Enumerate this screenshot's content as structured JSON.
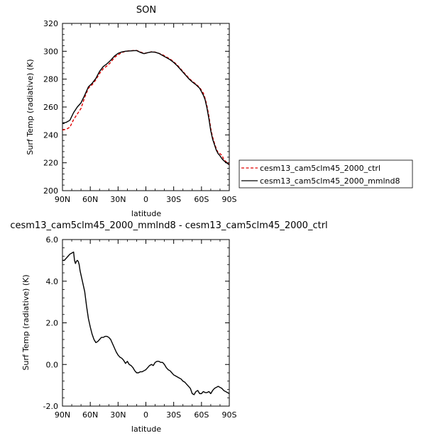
{
  "chart_data": [
    {
      "type": "line",
      "title": "SON",
      "xlabel": "latitude",
      "ylabel": "Surf Temp (radiative) (K)",
      "xlim": [
        90,
        -90
      ],
      "ylim": [
        200,
        320
      ],
      "x_tick_values": [
        90,
        60,
        30,
        0,
        -30,
        -60,
        -90
      ],
      "x_tick_labels": [
        "90N",
        "60N",
        "30N",
        "0",
        "30S",
        "60S",
        "90S"
      ],
      "y_tick_values": [
        200,
        220,
        240,
        260,
        280,
        300,
        320
      ],
      "y_tick_labels": [
        "200",
        "220",
        "240",
        "260",
        "280",
        "300",
        "320"
      ],
      "legend_position": "right",
      "series": [
        {
          "name": "cesm13_cam5clm45_2000_ctrl",
          "color": "#e00000",
          "dash": "dashed",
          "x": [
            90,
            86,
            82,
            78,
            74,
            70,
            66,
            62,
            58,
            54,
            50,
            46,
            42,
            38,
            34,
            30,
            26,
            22,
            18,
            14,
            10,
            6,
            2,
            -2,
            -6,
            -10,
            -14,
            -18,
            -22,
            -26,
            -30,
            -34,
            -38,
            -42,
            -46,
            -50,
            -54,
            -58,
            -62,
            -64,
            -66,
            -68,
            -70,
            -72,
            -74,
            -76,
            -78,
            -80,
            -82,
            -84,
            -86,
            -88,
            -90
          ],
          "y": [
            243.5,
            244.0,
            245.5,
            251.0,
            255.0,
            259.0,
            267.0,
            273.5,
            276.0,
            279.5,
            284.0,
            287.5,
            289.5,
            292.0,
            295.5,
            297.5,
            299.0,
            300.0,
            300.3,
            300.5,
            300.6,
            299.5,
            298.5,
            299.0,
            299.6,
            299.4,
            298.5,
            297.5,
            296.0,
            294.5,
            292.5,
            290.0,
            287.0,
            284.0,
            281.0,
            278.5,
            276.5,
            274.0,
            270.0,
            266.0,
            260.5,
            253.5,
            244.5,
            238.5,
            234.0,
            230.0,
            227.0,
            226.5,
            225.5,
            222.5,
            221.0,
            220.0,
            219.0
          ]
        },
        {
          "name": "cesm13_cam5clm45_2000_mmlnd8",
          "color": "#000000",
          "dash": "solid",
          "x": [
            90,
            86,
            82,
            78,
            74,
            70,
            66,
            62,
            58,
            54,
            50,
            46,
            42,
            38,
            34,
            30,
            26,
            22,
            18,
            14,
            10,
            6,
            2,
            -2,
            -6,
            -10,
            -14,
            -18,
            -22,
            -26,
            -30,
            -34,
            -38,
            -42,
            -46,
            -50,
            -54,
            -58,
            -62,
            -64,
            -66,
            -68,
            -70,
            -72,
            -74,
            -76,
            -78,
            -80,
            -82,
            -84,
            -86,
            -88,
            -90
          ],
          "y": [
            248.5,
            249.0,
            250.5,
            256.0,
            260.0,
            263.0,
            268.5,
            274.5,
            277.0,
            280.5,
            285.5,
            289.0,
            291.0,
            293.5,
            296.5,
            298.5,
            299.5,
            300.0,
            300.2,
            300.4,
            300.5,
            299.2,
            298.3,
            299.0,
            299.5,
            299.3,
            298.5,
            297.0,
            295.5,
            294.0,
            292.0,
            289.5,
            286.5,
            283.5,
            280.5,
            278.0,
            276.0,
            273.5,
            268.5,
            265.0,
            259.0,
            251.5,
            243.0,
            237.0,
            233.0,
            229.0,
            226.5,
            225.0,
            223.0,
            221.5,
            220.5,
            219.5,
            218.5
          ]
        }
      ]
    },
    {
      "type": "line",
      "title": "cesm13_cam5clm45_2000_mmlnd8 - cesm13_cam5clm45_2000_ctrl",
      "xlabel": "latitude",
      "ylabel": "Surf Temp (radiative) (K)",
      "xlim": [
        90,
        -90
      ],
      "ylim": [
        -2.0,
        6.0
      ],
      "x_tick_values": [
        90,
        60,
        30,
        0,
        -30,
        -60,
        -90
      ],
      "x_tick_labels": [
        "90N",
        "60N",
        "30N",
        "0",
        "30S",
        "60S",
        "90S"
      ],
      "y_tick_values": [
        -2,
        0,
        2,
        4,
        6
      ],
      "y_tick_labels": [
        "-2.0",
        "0.0",
        "2.0",
        "4.0",
        "6.0"
      ],
      "series": [
        {
          "color": "#000000",
          "dash": "solid",
          "x": [
            90,
            88,
            86,
            84,
            82,
            80,
            78,
            77,
            76,
            75,
            74,
            73,
            72,
            71,
            70,
            68,
            66,
            64,
            62,
            60,
            58,
            56,
            54,
            52,
            50,
            48,
            46,
            44,
            42,
            40,
            38,
            36,
            34,
            32,
            30,
            28,
            26,
            24,
            22,
            20,
            18,
            16,
            14,
            12,
            10,
            8,
            6,
            4,
            2,
            0,
            -2,
            -4,
            -6,
            -8,
            -10,
            -12,
            -14,
            -16,
            -18,
            -20,
            -22,
            -24,
            -26,
            -28,
            -30,
            -32,
            -34,
            -36,
            -38,
            -40,
            -42,
            -44,
            -46,
            -48,
            -50,
            -52,
            -54,
            -56,
            -58,
            -60,
            -62,
            -64,
            -66,
            -68,
            -70,
            -72,
            -74,
            -76,
            -78,
            -80,
            -82,
            -84,
            -86,
            -88,
            -90
          ],
          "y": [
            5.0,
            5.0,
            5.1,
            5.2,
            5.3,
            5.35,
            5.4,
            5.0,
            4.85,
            4.95,
            5.0,
            4.95,
            4.8,
            4.5,
            4.3,
            3.9,
            3.5,
            2.8,
            2.2,
            1.8,
            1.45,
            1.2,
            1.05,
            1.1,
            1.2,
            1.3,
            1.3,
            1.35,
            1.35,
            1.3,
            1.2,
            1.0,
            0.8,
            0.6,
            0.45,
            0.35,
            0.3,
            0.2,
            0.05,
            0.15,
            0.0,
            -0.05,
            -0.15,
            -0.3,
            -0.4,
            -0.4,
            -0.35,
            -0.35,
            -0.3,
            -0.25,
            -0.15,
            -0.05,
            0.0,
            -0.05,
            0.1,
            0.15,
            0.15,
            0.1,
            0.1,
            0.0,
            -0.15,
            -0.25,
            -0.3,
            -0.4,
            -0.5,
            -0.55,
            -0.6,
            -0.65,
            -0.7,
            -0.8,
            -0.85,
            -0.95,
            -1.05,
            -1.15,
            -1.4,
            -1.45,
            -1.3,
            -1.25,
            -1.4,
            -1.4,
            -1.3,
            -1.35,
            -1.35,
            -1.3,
            -1.4,
            -1.25,
            -1.15,
            -1.1,
            -1.05,
            -1.1,
            -1.15,
            -1.25,
            -1.3,
            -1.35,
            -1.4
          ]
        }
      ]
    }
  ]
}
